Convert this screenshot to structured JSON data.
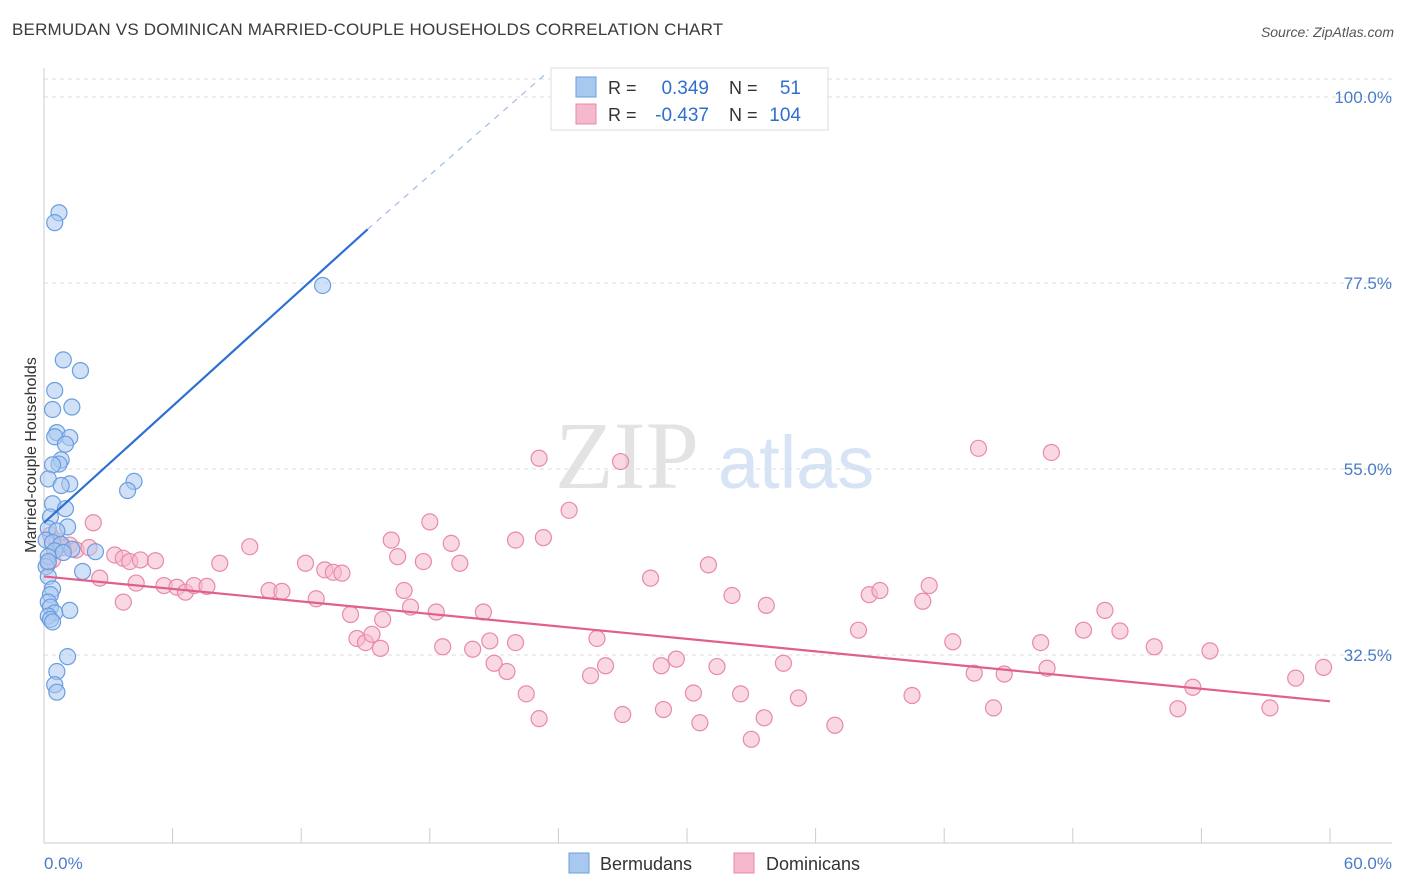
{
  "header": {
    "title": "BERMUDAN VS DOMINICAN MARRIED-COUPLE HOUSEHOLDS CORRELATION CHART",
    "source": "Source: ZipAtlas.com"
  },
  "watermark": {
    "zip": "ZIP",
    "atlas": "atlas"
  },
  "colors": {
    "blue_fill": "#a9c8f0",
    "blue_stroke": "#6a9ee0",
    "blue_line": "#2e6fd3",
    "pink_fill": "#f6b8cc",
    "pink_stroke": "#e88aa8",
    "pink_line": "#e0608c",
    "grid": "#dddddd",
    "tick_text": "#4a7cc7"
  },
  "legend": {
    "rows": [
      {
        "r_label": "R =",
        "r_value": "0.349",
        "n_label": "N =",
        "n_value": "51"
      },
      {
        "r_label": "R =",
        "r_value": "-0.437",
        "n_label": "N =",
        "n_value": "104"
      }
    ]
  },
  "bottom_legend": {
    "series1": "Bermudans",
    "series2": "Dominicans"
  },
  "chart_data": {
    "type": "scatter",
    "title": "BERMUDAN VS DOMINICAN MARRIED-COUPLE HOUSEHOLDS CORRELATION CHART",
    "xlabel": "",
    "ylabel": "Married-couple Households",
    "xlim": [
      0,
      60
    ],
    "ylim": [
      10,
      102
    ],
    "x_tick_labels": [
      "0.0%",
      "60.0%"
    ],
    "y_tick_values": [
      32.5,
      55.0,
      77.5,
      100.0
    ],
    "y_tick_labels": [
      "32.5%",
      "55.0%",
      "77.5%",
      "100.0%"
    ],
    "grid": true,
    "series": [
      {
        "name": "Bermudans",
        "color": "#a9c8f0",
        "r": 0.349,
        "n": 51,
        "trend": {
          "x0": 0,
          "y0": 48.5,
          "x1": 15.1,
          "y1": 84.0,
          "dash_to_x": 23.5,
          "dash_to_y": 103.0
        },
        "points": [
          [
            0.7,
            86.0
          ],
          [
            0.5,
            84.8
          ],
          [
            13.0,
            77.2
          ],
          [
            0.9,
            68.2
          ],
          [
            1.7,
            66.9
          ],
          [
            0.5,
            64.5
          ],
          [
            1.3,
            62.5
          ],
          [
            0.4,
            62.2
          ],
          [
            0.6,
            59.4
          ],
          [
            1.2,
            58.8
          ],
          [
            0.5,
            58.9
          ],
          [
            1.0,
            58.0
          ],
          [
            0.8,
            56.1
          ],
          [
            0.7,
            55.6
          ],
          [
            0.4,
            55.5
          ],
          [
            0.2,
            53.8
          ],
          [
            1.2,
            53.2
          ],
          [
            0.8,
            53.0
          ],
          [
            4.2,
            53.5
          ],
          [
            3.9,
            52.4
          ],
          [
            0.4,
            50.8
          ],
          [
            1.0,
            50.2
          ],
          [
            0.3,
            49.2
          ],
          [
            1.1,
            48.0
          ],
          [
            0.2,
            47.8
          ],
          [
            0.6,
            47.5
          ],
          [
            0.1,
            46.4
          ],
          [
            0.4,
            46.1
          ],
          [
            0.8,
            45.9
          ],
          [
            1.3,
            45.3
          ],
          [
            0.5,
            45.1
          ],
          [
            2.4,
            45.0
          ],
          [
            0.2,
            44.4
          ],
          [
            0.1,
            43.2
          ],
          [
            1.8,
            42.6
          ],
          [
            0.2,
            42.0
          ],
          [
            0.4,
            40.5
          ],
          [
            0.3,
            39.8
          ],
          [
            0.2,
            38.9
          ],
          [
            0.3,
            38.3
          ],
          [
            1.2,
            37.9
          ],
          [
            0.5,
            37.6
          ],
          [
            0.2,
            37.2
          ],
          [
            0.3,
            36.8
          ],
          [
            0.4,
            36.5
          ],
          [
            1.1,
            32.3
          ],
          [
            0.6,
            30.5
          ],
          [
            0.5,
            28.9
          ],
          [
            0.6,
            28.0
          ],
          [
            0.2,
            43.8
          ],
          [
            0.9,
            44.9
          ]
        ]
      },
      {
        "name": "Dominicans",
        "color": "#f6b8cc",
        "r": -0.437,
        "n": 104,
        "trend": {
          "x0": 0,
          "y0": 42.0,
          "x1": 60,
          "y1": 26.9
        },
        "points": [
          [
            0.3,
            47.0
          ],
          [
            0.6,
            46.3
          ],
          [
            1.2,
            45.8
          ],
          [
            0.9,
            45.5
          ],
          [
            1.5,
            45.2
          ],
          [
            2.1,
            45.5
          ],
          [
            2.3,
            48.5
          ],
          [
            0.4,
            44.0
          ],
          [
            0.2,
            43.6
          ],
          [
            2.6,
            41.8
          ],
          [
            3.3,
            44.6
          ],
          [
            3.7,
            44.2
          ],
          [
            4.0,
            43.8
          ],
          [
            4.5,
            44.0
          ],
          [
            5.2,
            43.9
          ],
          [
            4.3,
            41.2
          ],
          [
            5.6,
            40.9
          ],
          [
            3.7,
            38.9
          ],
          [
            6.2,
            40.7
          ],
          [
            6.6,
            40.1
          ],
          [
            7.0,
            40.9
          ],
          [
            7.6,
            40.8
          ],
          [
            8.2,
            43.6
          ],
          [
            9.6,
            45.6
          ],
          [
            10.5,
            40.3
          ],
          [
            11.1,
            40.2
          ],
          [
            12.2,
            43.6
          ],
          [
            12.7,
            39.3
          ],
          [
            13.1,
            42.8
          ],
          [
            13.5,
            42.5
          ],
          [
            13.9,
            42.4
          ],
          [
            14.3,
            37.4
          ],
          [
            14.6,
            34.5
          ],
          [
            15.0,
            34.0
          ],
          [
            15.3,
            35.0
          ],
          [
            15.7,
            33.3
          ],
          [
            15.8,
            36.8
          ],
          [
            16.5,
            44.4
          ],
          [
            16.8,
            40.3
          ],
          [
            17.1,
            38.3
          ],
          [
            16.2,
            46.4
          ],
          [
            17.7,
            43.8
          ],
          [
            18.0,
            48.6
          ],
          [
            18.3,
            37.7
          ],
          [
            18.6,
            33.5
          ],
          [
            19.0,
            46.0
          ],
          [
            19.4,
            43.6
          ],
          [
            20.0,
            33.2
          ],
          [
            20.5,
            37.7
          ],
          [
            20.8,
            34.2
          ],
          [
            21.0,
            31.5
          ],
          [
            21.6,
            30.5
          ],
          [
            22.0,
            34.0
          ],
          [
            22.5,
            27.8
          ],
          [
            23.1,
            24.8
          ],
          [
            23.3,
            46.7
          ],
          [
            24.5,
            50.0
          ],
          [
            22.0,
            46.4
          ],
          [
            23.1,
            56.3
          ],
          [
            25.5,
            30.0
          ],
          [
            25.8,
            34.5
          ],
          [
            26.2,
            31.2
          ],
          [
            27.0,
            25.3
          ],
          [
            26.9,
            55.9
          ],
          [
            28.3,
            41.8
          ],
          [
            28.8,
            31.2
          ],
          [
            28.9,
            25.9
          ],
          [
            29.5,
            32.0
          ],
          [
            30.3,
            27.9
          ],
          [
            30.6,
            24.3
          ],
          [
            31.0,
            43.4
          ],
          [
            31.4,
            31.1
          ],
          [
            32.1,
            39.7
          ],
          [
            32.5,
            27.8
          ],
          [
            33.0,
            22.3
          ],
          [
            33.6,
            24.9
          ],
          [
            33.7,
            38.5
          ],
          [
            34.5,
            31.5
          ],
          [
            35.2,
            27.3
          ],
          [
            36.9,
            24.0
          ],
          [
            38.0,
            35.5
          ],
          [
            38.5,
            39.8
          ],
          [
            39.0,
            40.3
          ],
          [
            40.5,
            27.6
          ],
          [
            41.0,
            39.0
          ],
          [
            41.3,
            40.9
          ],
          [
            42.4,
            34.1
          ],
          [
            43.4,
            30.3
          ],
          [
            43.6,
            57.5
          ],
          [
            44.8,
            30.2
          ],
          [
            46.5,
            34.0
          ],
          [
            46.8,
            30.9
          ],
          [
            47.0,
            57.0
          ],
          [
            48.5,
            35.5
          ],
          [
            49.5,
            37.9
          ],
          [
            50.2,
            35.4
          ],
          [
            51.8,
            33.5
          ],
          [
            53.6,
            28.6
          ],
          [
            54.4,
            33.0
          ],
          [
            58.4,
            29.7
          ],
          [
            59.7,
            31.0
          ],
          [
            57.2,
            26.1
          ],
          [
            52.9,
            26.0
          ],
          [
            44.3,
            26.1
          ]
        ]
      }
    ]
  }
}
